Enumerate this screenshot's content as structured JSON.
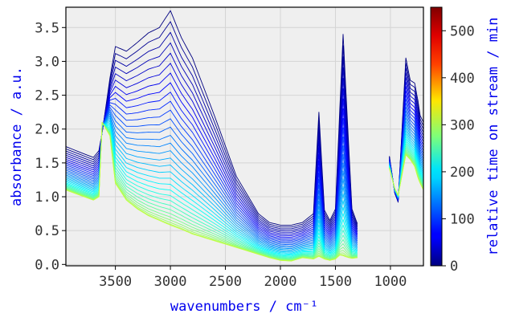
{
  "colors": {
    "axis_label": "#0000ee",
    "tick_label": "#333333",
    "plot_background": "#efefef",
    "grid": "#d4d4d4",
    "frame": "#000000"
  },
  "chart_data": {
    "type": "line",
    "xlabel": "wavenumbers / cm⁻¹",
    "ylabel": "absorbance / a.u.",
    "xlim": [
      3950,
      700
    ],
    "ylim": [
      -0.02,
      3.8
    ],
    "x_reversed": true,
    "grid": true,
    "x_ticks": [
      3500,
      3000,
      2500,
      2000,
      1500,
      1000
    ],
    "x_tick_labels": [
      "3500",
      "3000",
      "2500",
      "2000",
      "1500",
      "1000"
    ],
    "y_ticks": [
      0.0,
      0.5,
      1.0,
      1.5,
      2.0,
      2.5,
      3.0,
      3.5
    ],
    "y_tick_labels": [
      "0.0",
      "0.5",
      "1.0",
      "1.5",
      "2.0",
      "2.5",
      "3.0",
      "3.5"
    ],
    "spectrum_segments": [
      [
        3950,
        1290
      ],
      [
        1010,
        700
      ]
    ],
    "colorbar": {
      "label": "relative time on stream / min",
      "min": 0,
      "max": 550,
      "colormap": "jet",
      "ticks": [
        0,
        100,
        200,
        300,
        400,
        500
      ],
      "tick_labels": [
        "0",
        "100",
        "200",
        "300",
        "400",
        "500"
      ]
    },
    "series_time_min": [
      0,
      10,
      20,
      30,
      40,
      50,
      60,
      70,
      80,
      90,
      100,
      110,
      120,
      130,
      140,
      150,
      160,
      170,
      180,
      190,
      200,
      210,
      220,
      230,
      240,
      250,
      260,
      270,
      280,
      290,
      300,
      310
    ],
    "reference_points": {
      "x": [
        3950,
        3700,
        3650,
        3620,
        3550,
        3500,
        3400,
        3300,
        3200,
        3100,
        3000,
        2900,
        2800,
        2600,
        2400,
        2200,
        2100,
        2000,
        1900,
        1800,
        1700,
        1650,
        1600,
        1550,
        1500,
        1460,
        1430,
        1400,
        1350,
        1300,
        1010,
        960,
        930,
        860,
        820,
        780,
        750,
        730,
        700
      ],
      "first_series_y": [
        1.74,
        1.58,
        1.68,
        1.95,
        2.75,
        3.22,
        3.15,
        3.28,
        3.42,
        3.5,
        3.75,
        3.35,
        3.05,
        2.2,
        1.3,
        0.75,
        0.62,
        0.58,
        0.58,
        0.62,
        0.75,
        2.25,
        0.8,
        0.65,
        0.82,
        2.3,
        3.4,
        2.4,
        0.82,
        0.6,
        1.6,
        1.05,
        0.92,
        3.05,
        2.72,
        2.68,
        2.42,
        2.2,
        2.1
      ],
      "last_series_y": [
        1.1,
        0.95,
        1.0,
        2.1,
        1.9,
        1.2,
        0.95,
        0.82,
        0.72,
        0.65,
        0.58,
        0.52,
        0.45,
        0.35,
        0.25,
        0.15,
        0.1,
        0.06,
        0.05,
        0.1,
        0.08,
        0.12,
        0.08,
        0.06,
        0.08,
        0.14,
        0.13,
        0.11,
        0.09,
        0.1,
        1.42,
        1.12,
        1.02,
        1.62,
        1.55,
        1.45,
        1.28,
        1.2,
        1.1
      ]
    }
  }
}
